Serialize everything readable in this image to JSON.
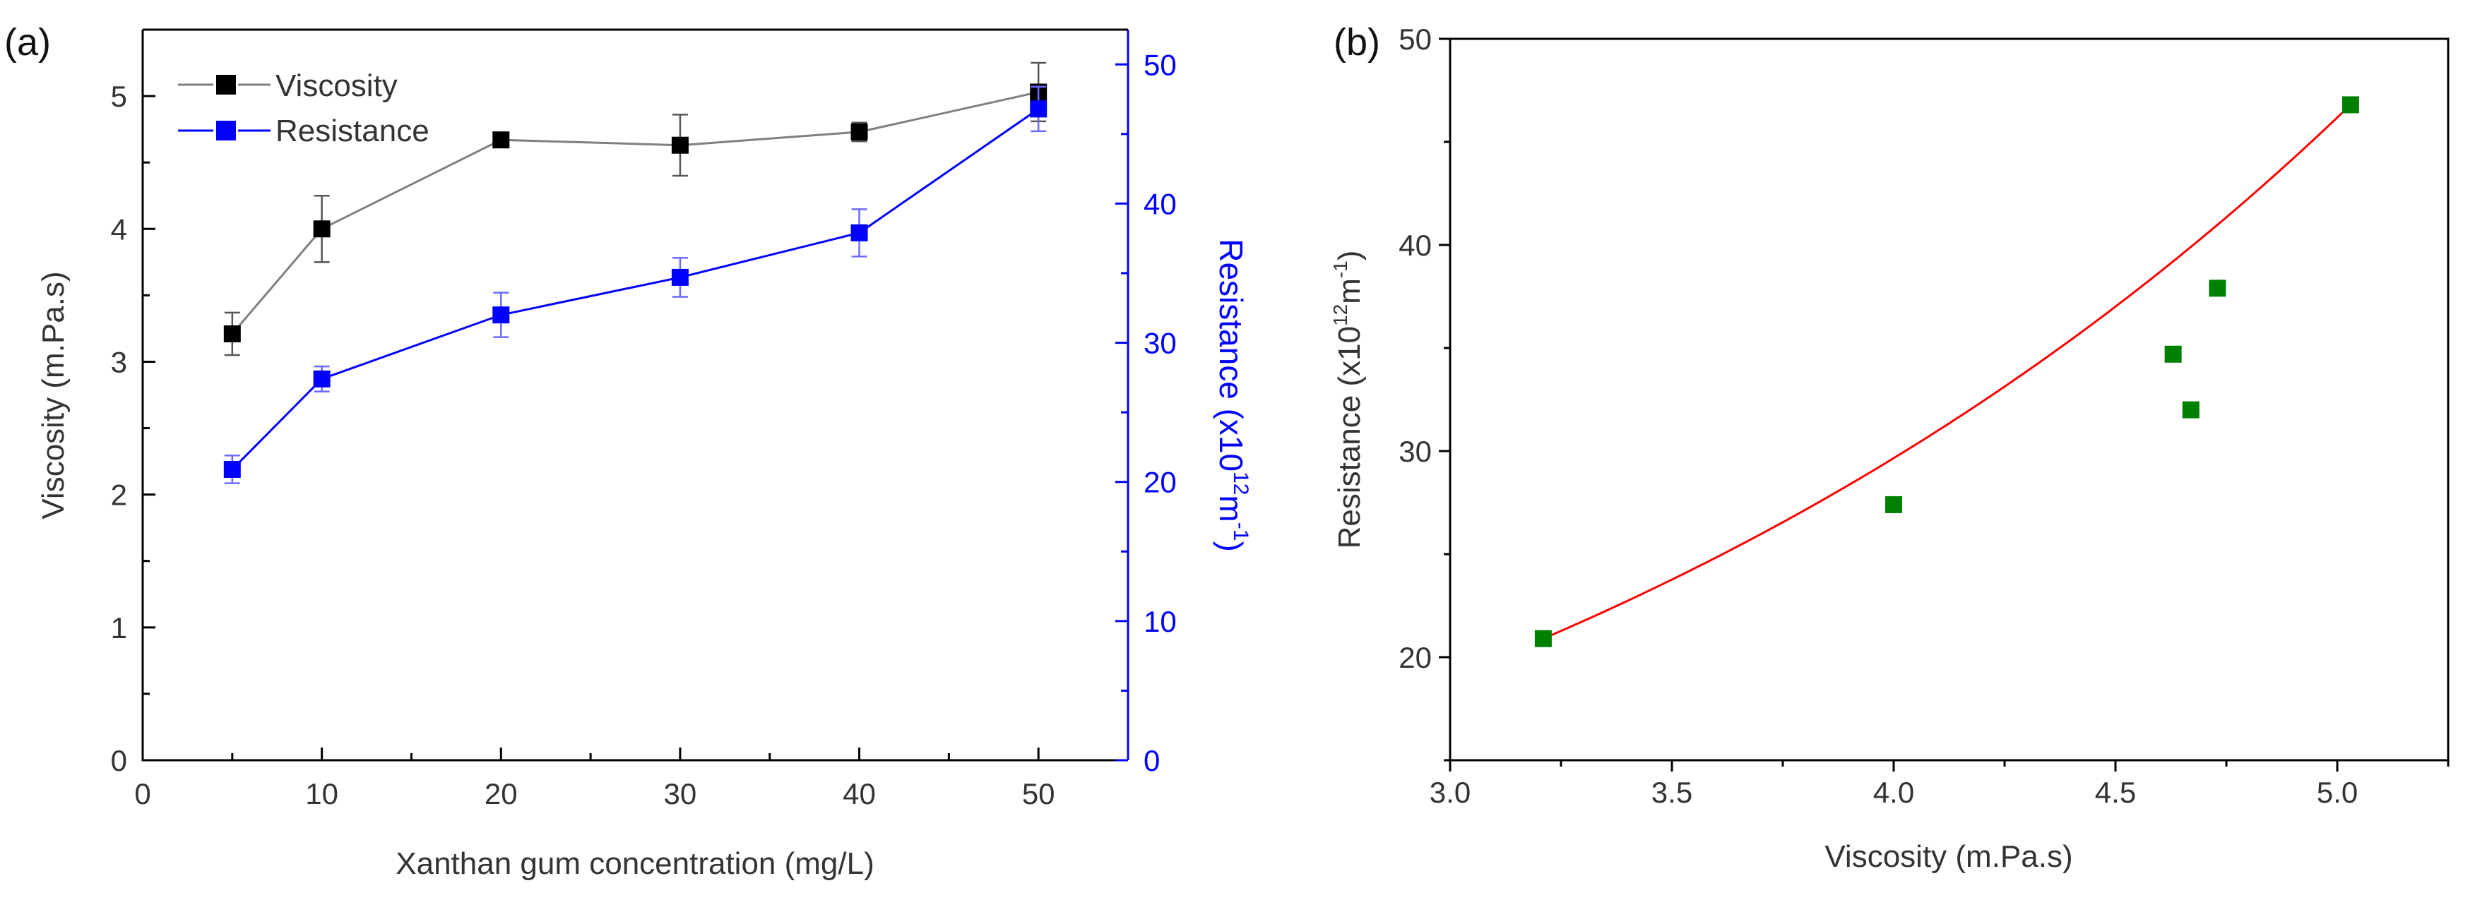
{
  "chart_data": [
    {
      "type": "line",
      "panel_label": "(a)",
      "xlabel": "Xanthan gum concentration (mg/L)",
      "ylabel": "Viscosity (m.Pa.s)",
      "y2label": "Resistance (x10",
      "y2label_exp": "12",
      "y2label_unit": "m",
      "y2label_unit_exp": "-1",
      "y2label_close": ")",
      "xlim": [
        0,
        55
      ],
      "ylim": [
        0,
        5.5
      ],
      "y2lim": [
        0,
        52.5
      ],
      "xticks": [
        0,
        10,
        20,
        30,
        40,
        50
      ],
      "yticks": [
        0,
        1,
        2,
        3,
        4,
        5
      ],
      "y2ticks": [
        0,
        10,
        20,
        30,
        40,
        50
      ],
      "x": [
        5,
        10,
        20,
        30,
        40,
        50
      ],
      "series": [
        {
          "name": "Viscosity",
          "axis": "left",
          "color": "#000000",
          "line_color": "#7f7f7f",
          "values": [
            3.21,
            4.0,
            4.67,
            4.63,
            4.73,
            5.03
          ],
          "errors": [
            0.16,
            0.25,
            0.05,
            0.23,
            0.07,
            0.22
          ]
        },
        {
          "name": "Resistance",
          "axis": "right",
          "color": "#0000ff",
          "line_color": "#0000ff",
          "values": [
            20.9,
            27.4,
            32.0,
            34.7,
            37.9,
            46.8
          ],
          "errors": [
            1.0,
            0.9,
            1.6,
            1.4,
            1.7,
            1.6
          ]
        }
      ],
      "legend_position": "top-left"
    },
    {
      "type": "scatter",
      "panel_label": "(b)",
      "xlabel": "Viscosity (m.Pa.s)",
      "ylabel": "Resistance (x10",
      "ylabel_exp": "12",
      "ylabel_unit": "m",
      "ylabel_unit_exp": "-1",
      "ylabel_close": ")",
      "xlim": [
        3.0,
        5.25
      ],
      "ylim": [
        15,
        50
      ],
      "xticks": [
        "3.0",
        "3.5",
        "4.0",
        "4.5",
        "5.0"
      ],
      "yticks": [
        20,
        30,
        40,
        50
      ],
      "points": [
        {
          "x": 3.21,
          "y": 20.9
        },
        {
          "x": 4.0,
          "y": 27.4
        },
        {
          "x": 4.63,
          "y": 34.7
        },
        {
          "x": 4.67,
          "y": 32.0
        },
        {
          "x": 4.73,
          "y": 37.9
        },
        {
          "x": 5.03,
          "y": 46.8
        }
      ],
      "marker_color": "#008000",
      "fit": {
        "type": "exponential",
        "color": "#ff0000",
        "x_range": [
          3.21,
          5.03
        ],
        "y_range": [
          20.9,
          46.8
        ]
      }
    }
  ]
}
